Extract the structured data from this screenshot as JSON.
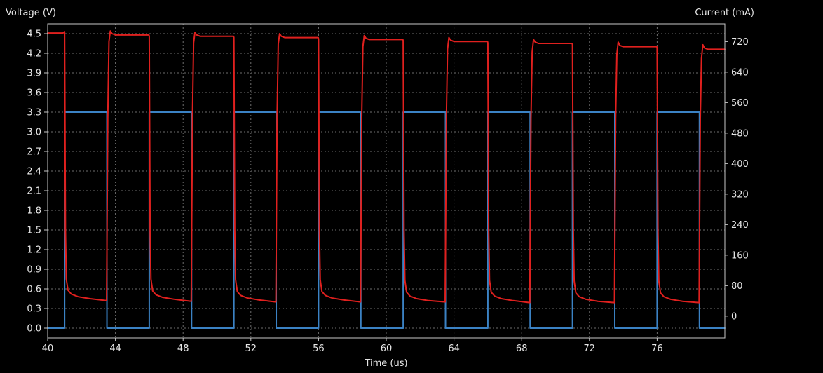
{
  "colors": {
    "background": "#000000",
    "plot_background": "#000000",
    "axes": "#c8c8c8",
    "grid": "#6e6e6e",
    "text": "#e6e6e6",
    "voltage": "#3b82c4",
    "current": "#e0201e"
  },
  "chart_data": {
    "type": "line",
    "title": "",
    "xlabel": "Time (us)",
    "ylabel_left": "Voltage (V)",
    "ylabel_right": "Current (mA)",
    "xlim": [
      40,
      80
    ],
    "ylim_left": [
      -0.15,
      4.65
    ],
    "ylim_right": [
      -57.3,
      766.7
    ],
    "x_ticks": [
      40,
      44,
      48,
      52,
      56,
      60,
      64,
      68,
      72,
      76
    ],
    "y_left_ticks": [
      0.0,
      0.3,
      0.6,
      0.9,
      1.2,
      1.5,
      1.8,
      2.1,
      2.4,
      2.7,
      3.0,
      3.3,
      3.6,
      3.9,
      4.2,
      4.5
    ],
    "y_right_ticks": [
      0,
      80,
      160,
      240,
      320,
      400,
      480,
      560,
      640,
      720
    ],
    "grid": true,
    "grid_style": "dotted",
    "series": [
      {
        "axis": "left",
        "color": "#3b82c4",
        "style": "step",
        "x": [
          40.0,
          40.0,
          41.0,
          41.0,
          43.5,
          43.5,
          46.0,
          46.0,
          48.5,
          48.5,
          51.0,
          51.0,
          53.5,
          53.5,
          56.0,
          56.0,
          58.5,
          58.5,
          61.0,
          61.0,
          63.5,
          63.5,
          66.0,
          66.0,
          68.5,
          68.5,
          71.0,
          71.0,
          73.5,
          73.5,
          76.0,
          76.0,
          78.5,
          78.5,
          80.0
        ],
        "y": [
          0.0,
          0.0,
          0.0,
          3.3,
          3.3,
          0.0,
          0.0,
          3.3,
          3.3,
          0.0,
          0.0,
          3.3,
          3.3,
          0.0,
          0.0,
          3.3,
          3.3,
          0.0,
          0.0,
          3.3,
          3.3,
          0.0,
          0.0,
          3.3,
          3.3,
          0.0,
          0.0,
          3.3,
          3.3,
          0.0,
          0.0,
          3.3,
          3.3,
          0.0,
          0.0
        ]
      },
      {
        "axis": "left",
        "color": "#e0201e",
        "style": "line",
        "x": [
          40.0,
          40.9,
          41.0,
          41.05,
          41.1,
          41.2,
          41.4,
          41.8,
          42.5,
          43.48,
          43.55,
          43.62,
          43.7,
          43.8,
          44.0,
          45.98,
          46.0,
          46.05,
          46.1,
          46.2,
          46.4,
          46.8,
          47.5,
          48.48,
          48.55,
          48.62,
          48.7,
          48.8,
          49.0,
          50.98,
          51.0,
          51.05,
          51.1,
          51.2,
          51.4,
          51.8,
          52.5,
          53.48,
          53.55,
          53.62,
          53.7,
          53.8,
          54.0,
          55.98,
          56.0,
          56.05,
          56.1,
          56.2,
          56.4,
          56.8,
          57.5,
          58.48,
          58.55,
          58.62,
          58.7,
          58.8,
          59.0,
          60.98,
          61.0,
          61.05,
          61.1,
          61.2,
          61.4,
          61.8,
          62.5,
          63.48,
          63.55,
          63.62,
          63.7,
          63.8,
          64.0,
          65.98,
          66.0,
          66.05,
          66.1,
          66.2,
          66.4,
          66.8,
          67.5,
          68.48,
          68.55,
          68.62,
          68.7,
          68.8,
          69.0,
          70.98,
          71.0,
          71.05,
          71.1,
          71.2,
          71.4,
          71.8,
          72.5,
          73.48,
          73.55,
          73.62,
          73.7,
          73.8,
          74.0,
          75.98,
          76.0,
          76.05,
          76.1,
          76.2,
          76.4,
          76.8,
          77.5,
          78.48,
          78.55,
          78.62,
          78.7,
          78.8,
          79.0,
          80.0
        ],
        "y": [
          4.51,
          4.51,
          4.53,
          1.5,
          0.75,
          0.58,
          0.52,
          0.48,
          0.45,
          0.42,
          3.2,
          4.38,
          4.54,
          4.5,
          4.48,
          4.48,
          4.46,
          1.5,
          0.75,
          0.57,
          0.51,
          0.47,
          0.44,
          0.41,
          3.2,
          4.36,
          4.52,
          4.48,
          4.46,
          4.46,
          4.44,
          1.5,
          0.74,
          0.56,
          0.5,
          0.46,
          0.43,
          0.4,
          3.2,
          4.34,
          4.5,
          4.46,
          4.44,
          4.44,
          4.42,
          1.5,
          0.74,
          0.56,
          0.5,
          0.46,
          0.43,
          0.4,
          3.2,
          4.3,
          4.47,
          4.43,
          4.41,
          4.41,
          4.39,
          1.5,
          0.73,
          0.55,
          0.49,
          0.45,
          0.42,
          0.4,
          3.2,
          4.26,
          4.44,
          4.4,
          4.38,
          4.38,
          4.36,
          1.5,
          0.73,
          0.55,
          0.49,
          0.45,
          0.42,
          0.39,
          3.2,
          4.22,
          4.41,
          4.37,
          4.35,
          4.35,
          4.33,
          1.5,
          0.72,
          0.54,
          0.48,
          0.44,
          0.41,
          0.39,
          3.2,
          4.18,
          4.37,
          4.32,
          4.3,
          4.3,
          4.28,
          1.5,
          0.72,
          0.54,
          0.48,
          0.44,
          0.41,
          0.39,
          3.2,
          4.12,
          4.33,
          4.28,
          4.26,
          4.26
        ]
      }
    ]
  }
}
